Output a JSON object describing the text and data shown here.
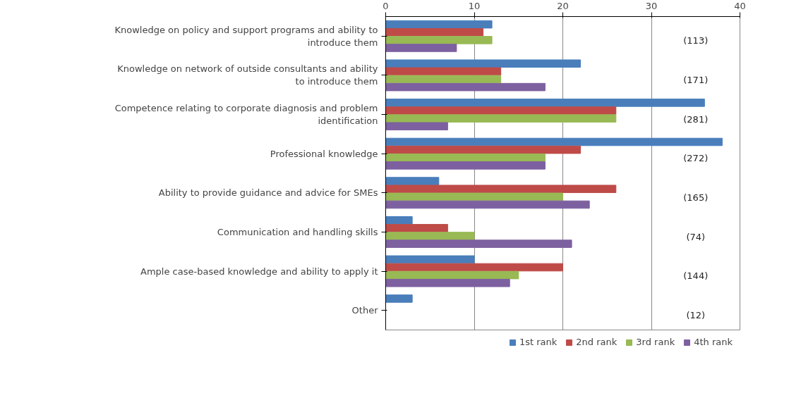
{
  "chart_data": {
    "type": "bar",
    "orientation": "horizontal",
    "categories": [
      "Knowledge on policy and support programs and ability to introduce them",
      "Knowledge on network of outside consultants and ability to introduce them",
      "Competence relating to corporate diagnosis and problem identification",
      "Professional knowledge",
      "Ability to provide guidance and advice for SMEs",
      "Communication and handling skills",
      "Ample case-based knowledge and ability to apply it",
      "Other"
    ],
    "series": [
      {
        "name": "1st rank",
        "color": "#4a7ebb",
        "values": [
          12,
          22,
          36,
          38,
          6,
          3,
          10,
          3
        ]
      },
      {
        "name": "2nd rank",
        "color": "#be4b48",
        "values": [
          11,
          13,
          26,
          22,
          26,
          7,
          20,
          0
        ]
      },
      {
        "name": "3rd rank",
        "color": "#98b954",
        "values": [
          12,
          13,
          26,
          18,
          20,
          10,
          15,
          0
        ]
      },
      {
        "name": "4th rank",
        "color": "#7d60a0",
        "values": [
          8,
          18,
          7,
          18,
          23,
          21,
          14,
          0
        ]
      }
    ],
    "xlim": [
      0,
      40
    ],
    "xticks": [
      0,
      10,
      20,
      30,
      40
    ],
    "grid": "x",
    "legend": "bottom",
    "annotations": [
      "(113)",
      "(171)",
      "(281)",
      "(272)",
      "(165)",
      "(74)",
      "(144)",
      "(12)"
    ]
  }
}
